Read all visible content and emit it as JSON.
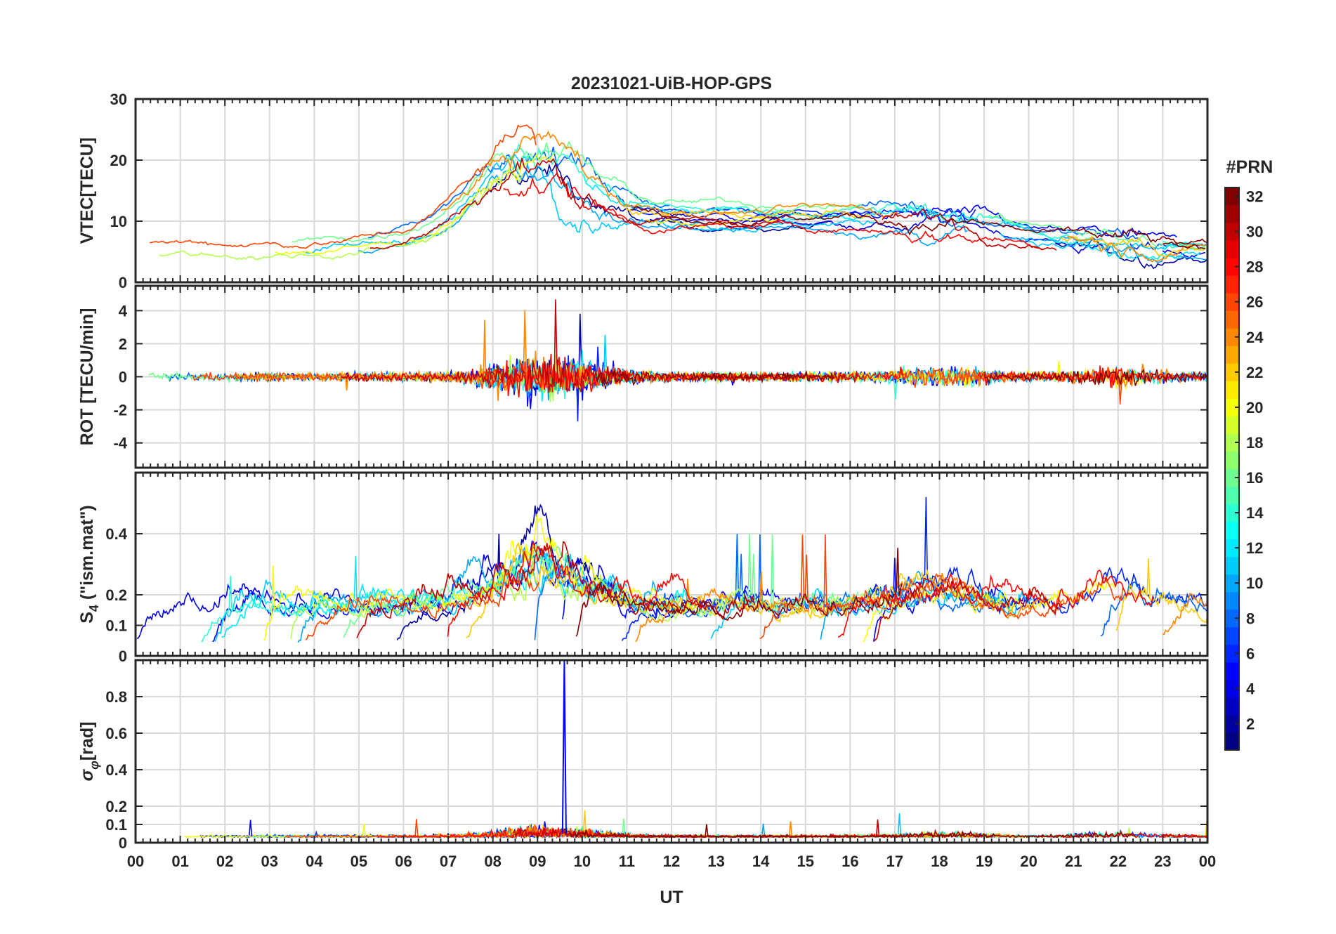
{
  "chart_data": {
    "type": "line",
    "title": "20231021-UiB-HOP-GPS",
    "xlabel": "UT",
    "x_ticks": [
      "00",
      "01",
      "02",
      "03",
      "04",
      "05",
      "06",
      "07",
      "08",
      "09",
      "10",
      "11",
      "12",
      "13",
      "14",
      "15",
      "16",
      "17",
      "18",
      "19",
      "20",
      "21",
      "22",
      "23",
      "00"
    ],
    "x_range_hours": [
      0,
      24
    ],
    "grid": true,
    "colorbar": {
      "label": "#PRN",
      "range": [
        1,
        32
      ],
      "ticks": [
        "2",
        "4",
        "6",
        "8",
        "10",
        "12",
        "14",
        "16",
        "18",
        "20",
        "22",
        "24",
        "26",
        "28",
        "30",
        "32"
      ],
      "colormap": "jet"
    },
    "panels": [
      {
        "id": "vtec",
        "ylabel": "VTEC[TECU]",
        "ylim": [
          0,
          30
        ],
        "y_ticks": [
          "0",
          "10",
          "20",
          "30"
        ],
        "y_tick_values": [
          0,
          10,
          20,
          30
        ],
        "description_levels": {
          "baseline_00_06": 6,
          "peak_09": 26,
          "plateau_12_20": 12,
          "late_21_24": 7
        }
      },
      {
        "id": "rot",
        "ylabel": "ROT [TECU/min]",
        "ylim": [
          -5.5,
          5.5
        ],
        "y_ticks": [
          "-4",
          "-2",
          "0",
          "2",
          "4"
        ],
        "y_tick_values": [
          -4,
          -2,
          0,
          2,
          4
        ]
      },
      {
        "id": "s4",
        "ylabel": "S4 (\"ism.mat\")",
        "ylabel_main": "S",
        "ylabel_sub": "4",
        "ylabel_rest": " (\"ism.mat\")",
        "ylim": [
          0,
          0.6
        ],
        "y_ticks": [
          "0",
          "0.1",
          "0.2",
          "0.4"
        ],
        "y_tick_values": [
          0,
          0.1,
          0.2,
          0.4
        ]
      },
      {
        "id": "sigphi",
        "ylabel": "σφ[rad]",
        "ylabel_main": "σ",
        "ylabel_sub": "φ",
        "ylabel_rest": "[rad]",
        "ylim": [
          0,
          1
        ],
        "y_ticks": [
          "0",
          "0.1",
          "0.2",
          "0.4",
          "0.6",
          "0.8"
        ],
        "y_tick_values": [
          0,
          0.1,
          0.2,
          0.4,
          0.6,
          0.8
        ],
        "peak": {
          "hour": 9.6,
          "value": 1.0,
          "prn": 5
        }
      }
    ],
    "series_prn": [
      2,
      4,
      5,
      6,
      8,
      10,
      11,
      12,
      14,
      16,
      18,
      20,
      22,
      24,
      26,
      28,
      30,
      32
    ]
  }
}
